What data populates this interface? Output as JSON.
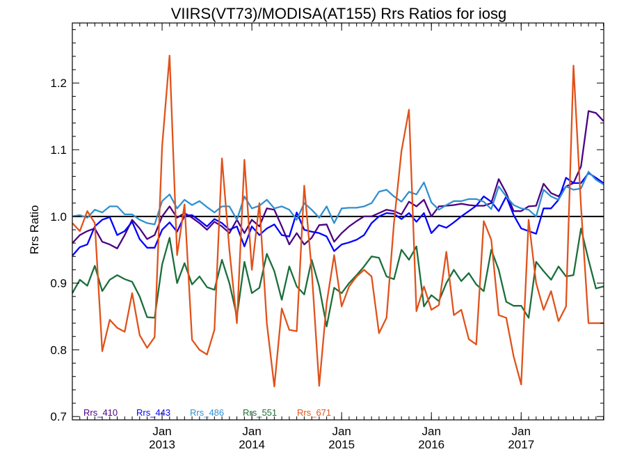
{
  "chart_data": {
    "type": "line",
    "title": "VIIRS(VT73)/MODISA(AT155)  Rrs Ratios for iosg",
    "xlabel": "",
    "ylabel": "Rrs Ratio",
    "xlim": [
      2012.0,
      2017.92
    ],
    "ylim": [
      0.695,
      1.29
    ],
    "yticks": [
      0.7,
      0.8,
      0.9,
      1.0,
      1.1,
      1.2
    ],
    "ytick_labels": [
      "0.7",
      "0.8",
      "0.9",
      "1.0",
      "1.1",
      "1.2"
    ],
    "xticks": [
      {
        "x": 2013.0,
        "month": "Jan",
        "year": "2013"
      },
      {
        "x": 2014.0,
        "month": "Jan",
        "year": "2014"
      },
      {
        "x": 2015.0,
        "month": "Jan",
        "year": "2015"
      },
      {
        "x": 2016.0,
        "month": "Jan",
        "year": "2016"
      },
      {
        "x": 2017.0,
        "month": "Jan",
        "year": "2017"
      }
    ],
    "reference_line": 1.0,
    "legend_position": "bottom-left",
    "x": [
      2012.0,
      2012.0833,
      2012.1667,
      2012.25,
      2012.3333,
      2012.4167,
      2012.5,
      2012.5833,
      2012.6667,
      2012.75,
      2012.8333,
      2012.9167,
      2013.0,
      2013.0833,
      2013.1667,
      2013.25,
      2013.3333,
      2013.4167,
      2013.5,
      2013.5833,
      2013.6667,
      2013.75,
      2013.8333,
      2013.9167,
      2014.0,
      2014.0833,
      2014.1667,
      2014.25,
      2014.3333,
      2014.4167,
      2014.5,
      2014.5833,
      2014.6667,
      2014.75,
      2014.8333,
      2014.9167,
      2015.0,
      2015.0833,
      2015.1667,
      2015.25,
      2015.3333,
      2015.4167,
      2015.5,
      2015.5833,
      2015.6667,
      2015.75,
      2015.8333,
      2015.9167,
      2016.0,
      2016.0833,
      2016.1667,
      2016.25,
      2016.3333,
      2016.4167,
      2016.5,
      2016.5833,
      2016.6667,
      2016.75,
      2016.8333,
      2016.9167,
      2017.0,
      2017.0833,
      2017.1667,
      2017.25,
      2017.3333,
      2017.4167,
      2017.5,
      2017.5833,
      2017.6667,
      2017.75,
      2017.8333,
      2017.9167
    ],
    "series": [
      {
        "name": "Rrs_410",
        "color": "#4b0082",
        "values": [
          0.96,
          0.972,
          0.978,
          0.982,
          0.962,
          0.958,
          0.952,
          0.972,
          0.995,
          0.982,
          0.966,
          0.972,
          1.0,
          1.015,
          0.998,
          1.005,
          0.998,
          0.99,
          0.98,
          0.992,
          0.985,
          0.975,
          0.995,
          0.975,
          0.995,
          0.985,
          1.012,
          1.01,
          0.985,
          0.958,
          0.975,
          0.958,
          0.968,
          0.987,
          0.988,
          0.962,
          0.975,
          0.985,
          0.993,
          1.0,
          1.0,
          1.005,
          1.01,
          1.008,
          1.003,
          1.022,
          1.015,
          1.025,
          1.0,
          1.015,
          1.016,
          1.017,
          1.019,
          1.017,
          1.016,
          1.016,
          1.02,
          1.056,
          1.035,
          1.008,
          1.008,
          1.015,
          1.016,
          1.049,
          1.035,
          1.03,
          1.045,
          1.05,
          1.075,
          1.158,
          1.155,
          1.143
        ]
      },
      {
        "name": "Rrs_443",
        "color": "#0000ff",
        "values": [
          0.941,
          0.954,
          0.958,
          0.985,
          0.995,
          0.999,
          0.972,
          0.978,
          0.992,
          0.966,
          0.953,
          0.953,
          0.98,
          0.991,
          0.977,
          1.001,
          1.002,
          0.994,
          0.985,
          0.996,
          0.99,
          0.98,
          0.985,
          0.955,
          0.985,
          0.972,
          0.982,
          0.988,
          0.972,
          0.97,
          1.006,
          0.98,
          0.977,
          0.975,
          0.97,
          0.948,
          0.958,
          0.961,
          0.965,
          0.972,
          0.99,
          1.0,
          1.005,
          1.004,
          0.996,
          1.005,
          0.992,
          1.005,
          0.975,
          0.987,
          0.983,
          0.991,
          1.0,
          1.008,
          1.016,
          1.03,
          1.022,
          1.008,
          1.03,
          1.002,
          0.982,
          0.978,
          0.974,
          1.012,
          1.012,
          1.025,
          1.058,
          1.05,
          1.05,
          1.065,
          1.058,
          1.05
        ]
      },
      {
        "name": "Rrs_486",
        "color": "#3090d0",
        "values": [
          1.0,
          1.002,
          0.998,
          1.01,
          1.006,
          1.015,
          1.015,
          1.003,
          1.003,
          0.995,
          0.99,
          0.988,
          1.023,
          1.033,
          1.012,
          1.025,
          1.017,
          1.023,
          1.014,
          1.006,
          1.015,
          1.015,
          0.995,
          1.03,
          1.012,
          1.016,
          1.025,
          1.012,
          1.015,
          1.01,
          0.995,
          1.02,
          1.01,
          0.998,
          1.015,
          0.99,
          1.012,
          1.013,
          1.013,
          1.015,
          1.02,
          1.037,
          1.04,
          1.03,
          1.022,
          1.037,
          1.033,
          1.051,
          1.021,
          1.01,
          1.017,
          1.023,
          1.023,
          1.026,
          1.026,
          1.022,
          1.011,
          1.045,
          1.03,
          1.017,
          1.012,
          1.01,
          1.0,
          1.04,
          1.03,
          1.025,
          1.045,
          1.04,
          1.042,
          1.067,
          1.055,
          1.048
        ]
      },
      {
        "name": "Rrs_551",
        "color": "#1a6e3a",
        "values": [
          0.885,
          0.905,
          0.896,
          0.926,
          0.888,
          0.905,
          0.912,
          0.906,
          0.902,
          0.88,
          0.849,
          0.848,
          0.928,
          0.968,
          0.9,
          0.93,
          0.898,
          0.91,
          0.894,
          0.89,
          0.935,
          0.9,
          0.85,
          0.932,
          0.885,
          0.893,
          0.944,
          0.918,
          0.875,
          0.925,
          0.895,
          0.883,
          0.935,
          0.895,
          0.835,
          0.893,
          0.885,
          0.9,
          0.912,
          0.925,
          0.94,
          0.938,
          0.91,
          0.906,
          0.95,
          0.935,
          0.955,
          0.865,
          0.882,
          0.873,
          0.9,
          0.92,
          0.903,
          0.915,
          0.898,
          0.888,
          0.95,
          0.92,
          0.872,
          0.866,
          0.866,
          0.848,
          0.932,
          0.918,
          0.905,
          0.925,
          0.91,
          0.912,
          0.982,
          0.935,
          0.892,
          0.895
        ]
      },
      {
        "name": "Rrs_671",
        "color": "#e0521a",
        "values": [
          0.99,
          0.978,
          1.008,
          0.99,
          0.798,
          0.845,
          0.833,
          0.827,
          0.885,
          0.822,
          0.803,
          0.819,
          1.105,
          1.241,
          0.942,
          1.018,
          0.815,
          0.8,
          0.793,
          0.83,
          1.087,
          0.95,
          0.84,
          1.085,
          0.92,
          1.02,
          0.84,
          0.745,
          0.862,
          0.83,
          0.828,
          1.046,
          0.92,
          0.746,
          0.87,
          0.942,
          0.865,
          0.895,
          0.91,
          0.92,
          0.91,
          0.825,
          0.848,
          0.99,
          1.098,
          1.16,
          0.858,
          0.895,
          0.86,
          0.867,
          0.947,
          0.852,
          0.86,
          0.816,
          0.808,
          0.993,
          0.965,
          0.852,
          0.848,
          0.79,
          0.748,
          0.995,
          0.9,
          0.86,
          0.888,
          0.843,
          0.865,
          1.226,
          1.015,
          0.84,
          0.84,
          0.84
        ]
      }
    ]
  }
}
